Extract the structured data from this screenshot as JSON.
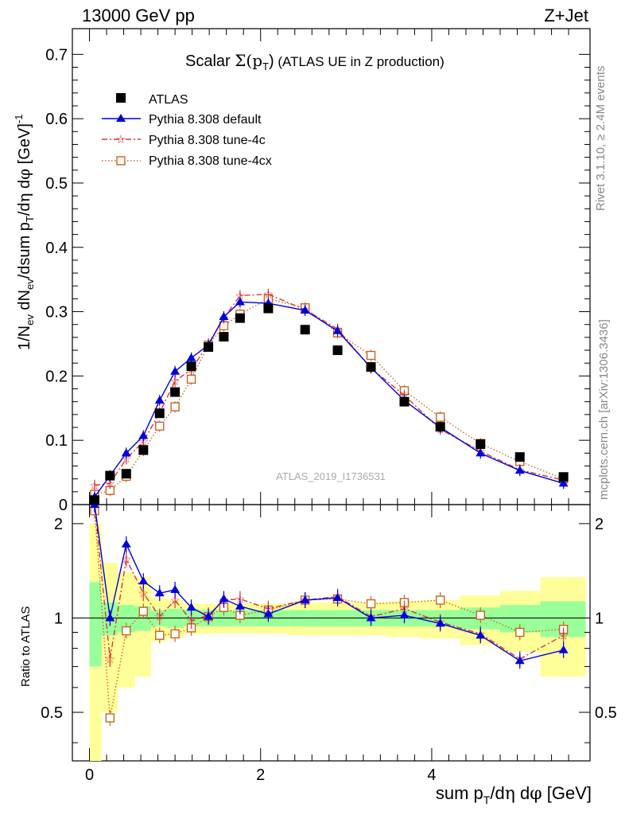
{
  "header": {
    "energy": "13000 GeV pp",
    "process": "Z+Jet",
    "title_prefix": "Scalar ",
    "title_suffix": " (ATLAS UE in Z production)"
  },
  "side_text": {
    "rivet": "Rivet 3.1.10, ≥ 2.4M events",
    "mcplots": "mcplots.cern.ch [arXiv:1306.3436]"
  },
  "watermark": "ATLAS_2019_I1736531",
  "chart_data": [
    {
      "panel": "main",
      "type": "scatter",
      "xlabel": "sum pT/dη dφ [GeV]",
      "ylabel": "1/Nev dNev/dsum pT/dη dφ [GeV]^-1",
      "xlim": [
        -0.2,
        5.85
      ],
      "ylim": [
        0,
        0.74
      ],
      "yticks": [
        0,
        0.1,
        0.2,
        0.3,
        0.4,
        0.5,
        0.6,
        0.7
      ],
      "ytick_labels": [
        "0",
        "0.1",
        "0.2",
        "0.3",
        "0.4",
        "0.5",
        "0.6",
        "0.7"
      ],
      "x": [
        0.06,
        0.24,
        0.43,
        0.63,
        0.82,
        1.0,
        1.19,
        1.39,
        1.57,
        1.76,
        2.09,
        2.52,
        2.9,
        3.29,
        3.68,
        4.1,
        4.57,
        5.03,
        5.54
      ],
      "legend": [
        "ATLAS",
        "Pythia 8.308 default",
        "Pythia 8.308 tune-4c",
        "Pythia 8.308 tune-4cx"
      ],
      "series": [
        {
          "name": "ATLAS",
          "color": "#000000",
          "marker": "square",
          "values": [
            0.007,
            0.045,
            0.048,
            0.085,
            0.142,
            0.175,
            0.215,
            0.245,
            0.261,
            0.29,
            0.305,
            0.272,
            0.24,
            0.214,
            0.16,
            0.121,
            0.094,
            0.074,
            0.043
          ]
        },
        {
          "name": "Pythia 8.308 default",
          "color": "#0000dd",
          "marker": "triangle",
          "line": "solid",
          "values": [
            0.012,
            0.045,
            0.08,
            0.107,
            0.162,
            0.207,
            0.228,
            0.248,
            0.292,
            0.315,
            0.313,
            0.302,
            0.27,
            0.213,
            0.162,
            0.12,
            0.08,
            0.053,
            0.033
          ]
        },
        {
          "name": "Pythia 8.308 tune-4c",
          "color": "#dd3333",
          "marker": "star",
          "line": "dashdot",
          "values": [
            0.03,
            0.033,
            0.071,
            0.098,
            0.143,
            0.192,
            0.21,
            0.25,
            0.29,
            0.325,
            0.327,
            0.303,
            0.273,
            0.212,
            0.17,
            0.117,
            0.083,
            0.054,
            0.038
          ]
        },
        {
          "name": "Pythia 8.308 tune-4cx",
          "color": "#c86420",
          "marker": "open-square",
          "line": "dotted",
          "values": [
            0.016,
            0.022,
            0.044,
            0.084,
            0.122,
            0.152,
            0.195,
            0.248,
            0.278,
            0.296,
            0.32,
            0.306,
            0.267,
            0.232,
            0.177,
            0.136,
            0.095,
            0.067,
            0.04
          ]
        }
      ]
    },
    {
      "panel": "ratio",
      "type": "scatter",
      "ylabel": "Ratio to ATLAS",
      "xlim": [
        -0.2,
        5.85
      ],
      "ylim": [
        0.35,
        2.3
      ],
      "yticks": [
        0.5,
        1,
        2
      ],
      "ytick_labels": [
        "0.5",
        "1",
        "2"
      ],
      "xticks": [
        0,
        2,
        4
      ],
      "xtick_labels": [
        "0",
        "2",
        "4"
      ],
      "x": [
        0.06,
        0.24,
        0.43,
        0.63,
        0.82,
        1.0,
        1.19,
        1.39,
        1.57,
        1.76,
        2.09,
        2.52,
        2.9,
        3.29,
        3.68,
        4.1,
        4.57,
        5.03,
        5.54
      ],
      "bins": [
        0,
        0.14,
        0.33,
        0.53,
        0.72,
        0.91,
        1.1,
        1.29,
        1.48,
        1.67,
        1.86,
        2.33,
        2.71,
        3.1,
        3.48,
        3.88,
        4.33,
        4.8,
        5.27,
        5.8
      ],
      "band_inner": [
        0.3,
        0.12,
        0.1,
        0.09,
        0.06,
        0.07,
        0.06,
        0.06,
        0.06,
        0.06,
        0.06,
        0.06,
        0.06,
        0.06,
        0.06,
        0.06,
        0.08,
        0.1,
        0.13
      ],
      "band_outer": [
        1.0,
        0.5,
        0.4,
        0.35,
        0.16,
        0.14,
        0.11,
        0.11,
        0.11,
        0.11,
        0.11,
        0.12,
        0.12,
        0.12,
        0.13,
        0.14,
        0.18,
        0.22,
        0.35
      ],
      "series": [
        {
          "name": "Pythia 8.308 default",
          "color": "#0000dd",
          "marker": "triangle",
          "line": "solid",
          "values": [
            2.3,
            1.0,
            1.72,
            1.31,
            1.2,
            1.23,
            1.08,
            1.01,
            1.15,
            1.09,
            1.03,
            1.14,
            1.16,
            1.0,
            1.02,
            0.96,
            0.88,
            0.73,
            0.79
          ]
        },
        {
          "name": "Pythia 8.308 tune-4c",
          "color": "#dd3333",
          "marker": "star",
          "line": "dashdot",
          "values": [
            2.3,
            0.74,
            1.54,
            1.2,
            1.01,
            1.14,
            0.98,
            1.02,
            1.14,
            1.15,
            1.07,
            1.14,
            1.17,
            1.01,
            1.07,
            0.97,
            0.89,
            0.74,
            0.88
          ]
        },
        {
          "name": "Pythia 8.308 tune-4cx",
          "color": "#c86420",
          "marker": "open-square",
          "line": "dotted",
          "values": [
            2.2,
            0.48,
            0.91,
            1.05,
            0.88,
            0.89,
            0.93,
            1.01,
            1.08,
            1.02,
            1.06,
            1.14,
            1.15,
            1.11,
            1.12,
            1.14,
            1.02,
            0.9,
            0.92
          ]
        }
      ]
    }
  ]
}
